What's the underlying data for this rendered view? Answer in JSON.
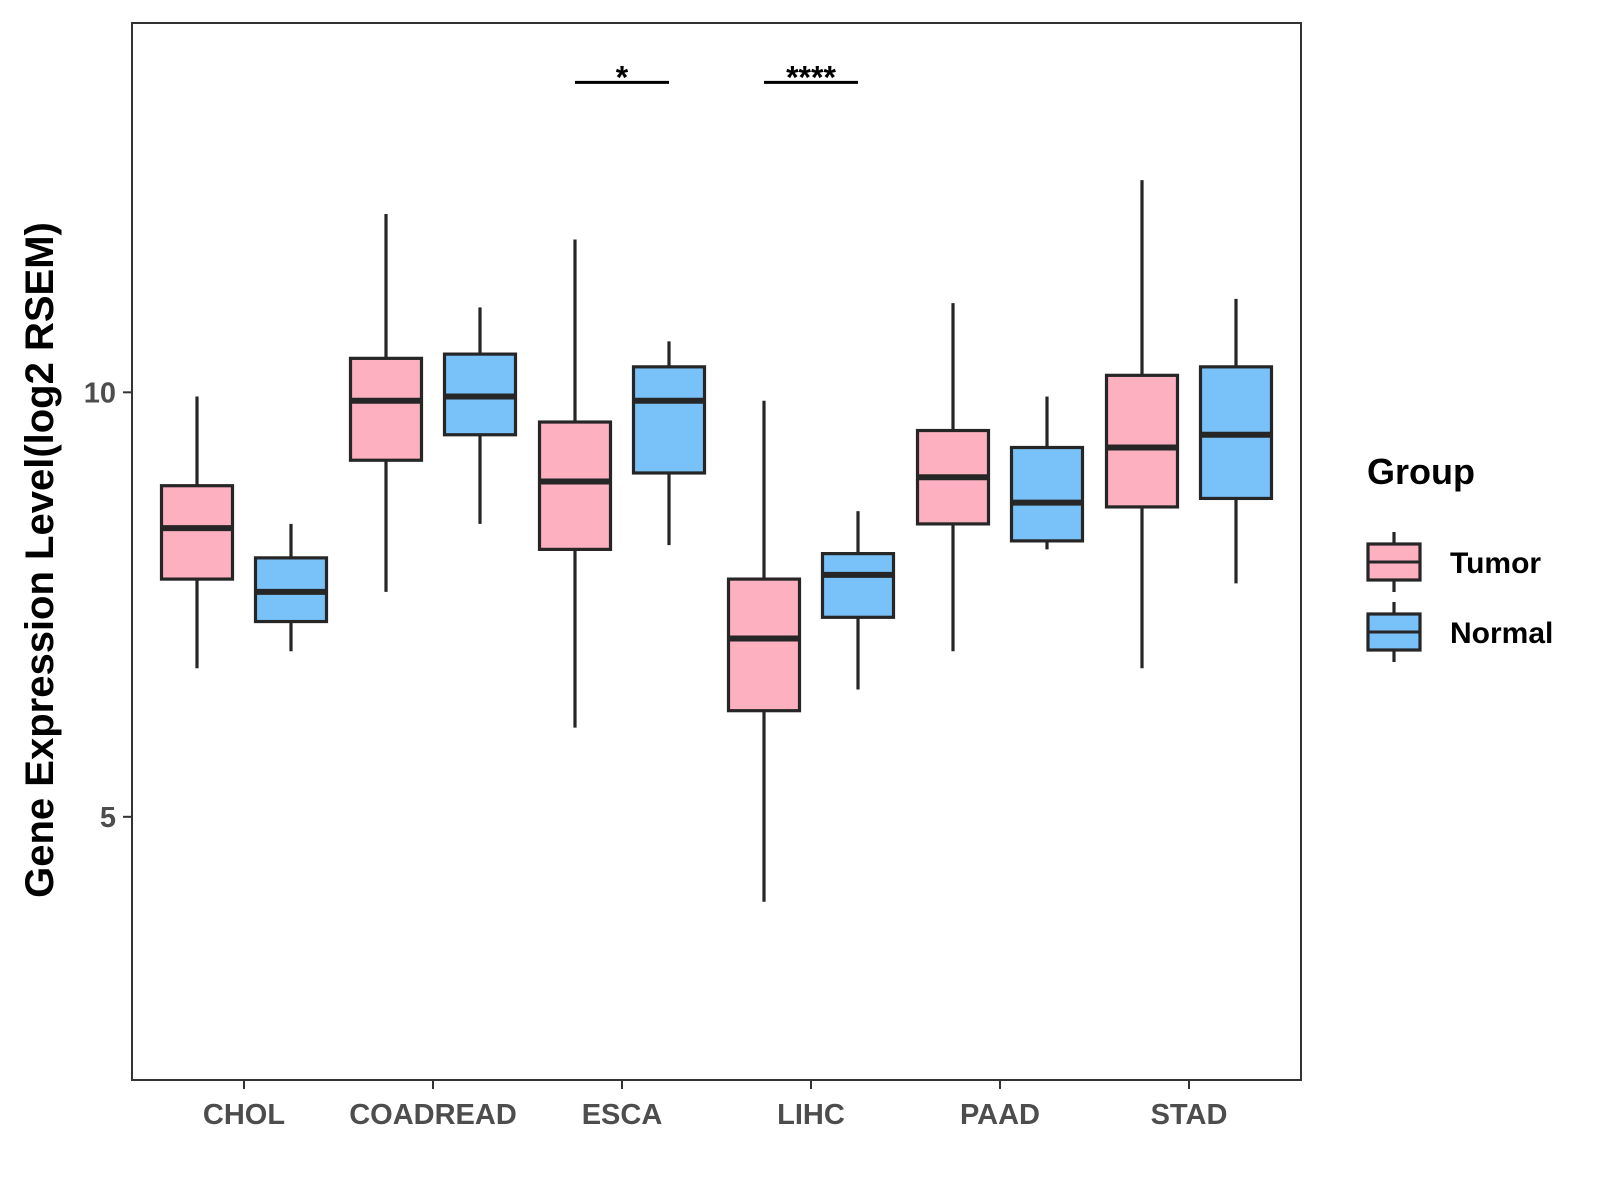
{
  "chart_data": {
    "type": "boxplot",
    "title": "",
    "xlabel": "",
    "ylabel": "Gene Expression Level(log2 RSEM)",
    "ylim": [
      1.9,
      14.35
    ],
    "yticks": [
      5,
      10
    ],
    "grid": false,
    "legend": {
      "title": "Group",
      "position": "right",
      "entries": [
        "Tumor",
        "Normal"
      ]
    },
    "colors": {
      "Tumor": "#fcb0c0",
      "Normal": "#79c2f9",
      "outline": "#262626",
      "panel_border": "#333333"
    },
    "categories": [
      "CHOL",
      "COADREAD",
      "ESCA",
      "LIHC",
      "PAAD",
      "STAD"
    ],
    "series": [
      {
        "name": "Tumor",
        "boxes": [
          {
            "category": "CHOL",
            "min": 6.75,
            "q1": 7.8,
            "median": 8.4,
            "q3": 8.9,
            "max": 9.95
          },
          {
            "category": "COADREAD",
            "min": 7.65,
            "q1": 9.2,
            "median": 9.9,
            "q3": 10.4,
            "max": 12.1
          },
          {
            "category": "ESCA",
            "min": 6.05,
            "q1": 8.15,
            "median": 8.95,
            "q3": 9.65,
            "max": 11.8
          },
          {
            "category": "LIHC",
            "min": 4.0,
            "q1": 6.25,
            "median": 7.1,
            "q3": 7.8,
            "max": 9.9
          },
          {
            "category": "PAAD",
            "min": 6.95,
            "q1": 8.45,
            "median": 9.0,
            "q3": 9.55,
            "max": 11.05
          },
          {
            "category": "STAD",
            "min": 6.75,
            "q1": 8.65,
            "median": 9.35,
            "q3": 10.2,
            "max": 12.5
          }
        ]
      },
      {
        "name": "Normal",
        "boxes": [
          {
            "category": "CHOL",
            "min": 6.95,
            "q1": 7.3,
            "median": 7.65,
            "q3": 8.05,
            "max": 8.45
          },
          {
            "category": "COADREAD",
            "min": 8.45,
            "q1": 9.5,
            "median": 9.95,
            "q3": 10.45,
            "max": 11.0
          },
          {
            "category": "ESCA",
            "min": 8.2,
            "q1": 9.05,
            "median": 9.9,
            "q3": 10.3,
            "max": 10.6
          },
          {
            "category": "LIHC",
            "min": 6.5,
            "q1": 7.35,
            "median": 7.85,
            "q3": 8.1,
            "max": 8.6
          },
          {
            "category": "PAAD",
            "min": 8.15,
            "q1": 8.25,
            "median": 8.7,
            "q3": 9.35,
            "max": 9.95
          },
          {
            "category": "STAD",
            "min": 7.75,
            "q1": 8.75,
            "median": 9.5,
            "q3": 10.3,
            "max": 11.1
          }
        ]
      }
    ],
    "annotations": [
      {
        "category": "ESCA",
        "label": "*",
        "y": 13.65
      },
      {
        "category": "LIHC",
        "label": "****",
        "y": 13.65
      }
    ]
  }
}
